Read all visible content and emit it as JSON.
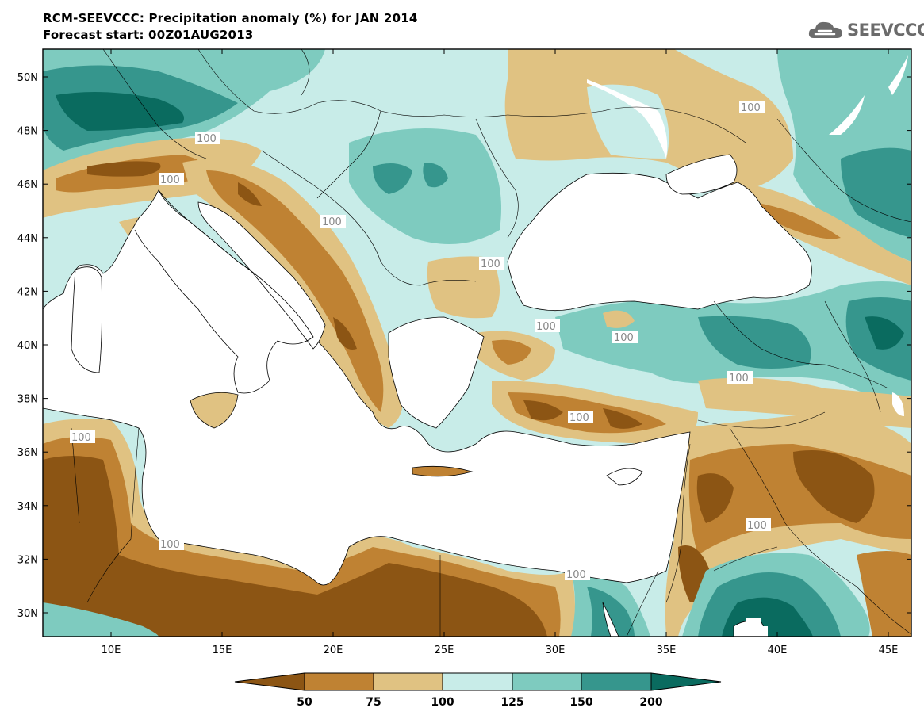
{
  "header": {
    "title": "RCM-SEEVCCC: Precipitation anomaly (%) for JAN 2014",
    "subtitle": "Forecast start: 00Z01AUG2013",
    "logo_text": "SEEVCCC",
    "logo_icon": "cloud-icon"
  },
  "map": {
    "region": "Balkans / Eastern Mediterranean",
    "lat_labels": [
      "50N",
      "48N",
      "46N",
      "44N",
      "42N",
      "40N",
      "38N",
      "36N",
      "34N",
      "32N",
      "30N"
    ],
    "lon_labels": [
      "10E",
      "15E",
      "20E",
      "25E",
      "30E",
      "35E",
      "40E",
      "45E"
    ],
    "contour_labels": [
      "100",
      "100",
      "100",
      "100",
      "100",
      "100",
      "100",
      "100",
      "100",
      "100",
      "100",
      "100",
      "100"
    ]
  },
  "colorbar": {
    "labels": [
      "50",
      "75",
      "100",
      "125",
      "150",
      "200"
    ],
    "colors": [
      "#8c5514",
      "#bf8233",
      "#e0c282",
      "#c8ece8",
      "#7ecbbf",
      "#36968d",
      "#0a6b5f"
    ]
  },
  "colors": {
    "very_dry": "#8c5514",
    "dry": "#bf8233",
    "slightly_dry": "#e0c282",
    "normal": "#c8ece8",
    "wet": "#7ecbbf",
    "very_wet": "#36968d",
    "extreme_wet": "#0a6b5f",
    "sea": "#ffffff"
  }
}
